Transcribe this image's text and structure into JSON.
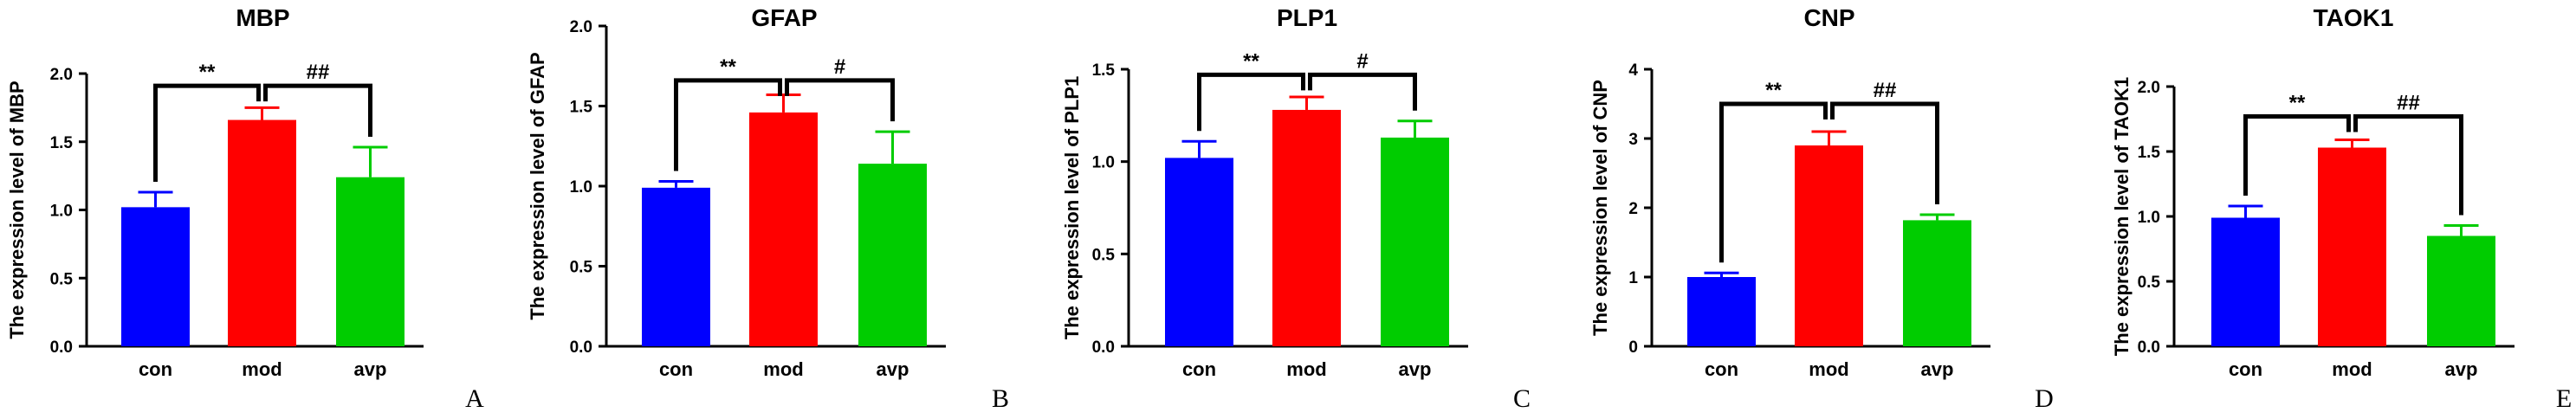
{
  "chart_data": [
    {
      "type": "bar",
      "panel": "A",
      "title": "MBP",
      "ylabel": "The expression level of MBP",
      "categories": [
        "con",
        "mod",
        "avp"
      ],
      "values": [
        1.02,
        1.66,
        1.24
      ],
      "errors": [
        0.11,
        0.09,
        0.22
      ],
      "ylim": [
        0,
        2.0
      ],
      "yticks": [
        0,
        0.5,
        1.0,
        1.5,
        2.0
      ],
      "ytick_labels": [
        "0.0",
        "0.5",
        "1.0",
        "1.5",
        "2.0"
      ],
      "colors": [
        "#0000ff",
        "#ff0000",
        "#00cc00"
      ],
      "significance": [
        {
          "label": "**",
          "from": 0,
          "to": 1,
          "y": 1.91
        },
        {
          "label": "##",
          "from": 1,
          "to": 2,
          "y": 1.91
        }
      ]
    },
    {
      "type": "bar",
      "panel": "B",
      "title": "GFAP",
      "ylabel": "The expression level of GFAP",
      "categories": [
        "con",
        "mod",
        "avp"
      ],
      "values": [
        0.99,
        1.46,
        1.14
      ],
      "errors": [
        0.04,
        0.11,
        0.2
      ],
      "ylim": [
        0,
        2.0
      ],
      "yticks": [
        0,
        0.5,
        1.0,
        1.5,
        2.0
      ],
      "ytick_labels": [
        "0.0",
        "0.5",
        "1.0",
        "1.5",
        "2.0"
      ],
      "colors": [
        "#0000ff",
        "#ff0000",
        "#00cc00"
      ],
      "significance": [
        {
          "label": "**",
          "from": 0,
          "to": 1,
          "y": 1.66
        },
        {
          "label": "#",
          "from": 1,
          "to": 2,
          "y": 1.66
        }
      ]
    },
    {
      "type": "bar",
      "panel": "C",
      "title": "PLP1",
      "ylabel": "The expression level of PLP1",
      "categories": [
        "con",
        "mod",
        "avp"
      ],
      "values": [
        1.02,
        1.28,
        1.13
      ],
      "errors": [
        0.09,
        0.07,
        0.09
      ],
      "ylim": [
        0,
        1.5
      ],
      "yticks": [
        0,
        0.5,
        1.0,
        1.5
      ],
      "ytick_labels": [
        "0.0",
        "0.5",
        "1.0",
        "1.5"
      ],
      "colors": [
        "#0000ff",
        "#ff0000",
        "#00cc00"
      ],
      "significance": [
        {
          "label": "**",
          "from": 0,
          "to": 1,
          "y": 1.47
        },
        {
          "label": "#",
          "from": 1,
          "to": 2,
          "y": 1.47
        }
      ]
    },
    {
      "type": "bar",
      "panel": "D",
      "title": "CNP",
      "ylabel": "The expression level of CNP",
      "categories": [
        "con",
        "mod",
        "avp"
      ],
      "values": [
        1.0,
        2.9,
        1.82
      ],
      "errors": [
        0.06,
        0.2,
        0.08
      ],
      "ylim": [
        0,
        4
      ],
      "yticks": [
        0,
        1,
        2,
        3,
        4
      ],
      "ytick_labels": [
        "0",
        "1",
        "2",
        "3",
        "4"
      ],
      "colors": [
        "#0000ff",
        "#ff0000",
        "#00cc00"
      ],
      "significance": [
        {
          "label": "**",
          "from": 0,
          "to": 1,
          "y": 3.5
        },
        {
          "label": "##",
          "from": 1,
          "to": 2,
          "y": 3.5
        }
      ]
    },
    {
      "type": "bar",
      "panel": "E",
      "title": "TAOK1",
      "ylabel": "The expression level of TAOK1",
      "categories": [
        "con",
        "mod",
        "avp"
      ],
      "values": [
        0.99,
        1.53,
        0.85
      ],
      "errors": [
        0.09,
        0.06,
        0.08
      ],
      "ylim": [
        0,
        2.0
      ],
      "yticks": [
        0,
        0.5,
        1.0,
        1.5,
        2.0
      ],
      "ytick_labels": [
        "0.0",
        "0.5",
        "1.0",
        "1.5",
        "2.0"
      ],
      "colors": [
        "#0000ff",
        "#ff0000",
        "#00cc00"
      ],
      "significance": [
        {
          "label": "**",
          "from": 0,
          "to": 1,
          "y": 1.77
        },
        {
          "label": "##",
          "from": 1,
          "to": 2,
          "y": 1.77
        }
      ]
    }
  ]
}
